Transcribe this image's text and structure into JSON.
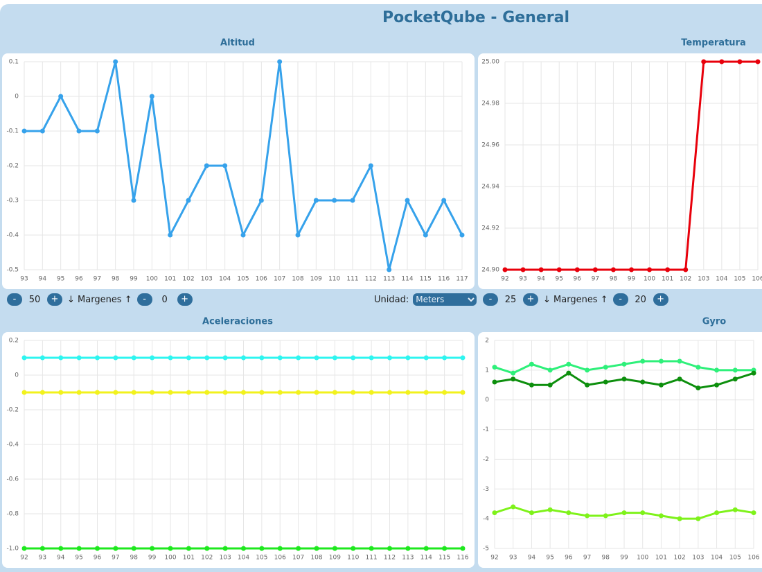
{
  "title": "PocketQube - General",
  "chart_data": [
    {
      "type": "line",
      "title": "Altitud",
      "categories": [
        93,
        94,
        95,
        96,
        97,
        98,
        99,
        100,
        101,
        102,
        103,
        104,
        105,
        106,
        107,
        108,
        109,
        110,
        111,
        112,
        113,
        114,
        115,
        116,
        117
      ],
      "series": [
        {
          "color": "#36a2eb",
          "values": [
            -0.1,
            -0.1,
            0,
            -0.1,
            -0.1,
            0.1,
            -0.3,
            0,
            -0.4,
            -0.3,
            -0.2,
            -0.2,
            -0.4,
            -0.3,
            0.1,
            -0.4,
            -0.3,
            -0.3,
            -0.3,
            -0.2,
            -0.5,
            -0.3,
            -0.4,
            -0.3,
            -0.4
          ]
        }
      ],
      "ylim": [
        -0.5,
        0.1
      ],
      "yticks": [
        0.1,
        0,
        -0.1,
        -0.2,
        -0.3,
        -0.4,
        -0.5
      ],
      "grid": true
    },
    {
      "type": "line",
      "title": "Temperatura",
      "categories": [
        92,
        93,
        94,
        95,
        96,
        97,
        98,
        99,
        100,
        101,
        102,
        103,
        104,
        105,
        106
      ],
      "series": [
        {
          "color": "#e8000b",
          "values": [
            24.9,
            24.9,
            24.9,
            24.9,
            24.9,
            24.9,
            24.9,
            24.9,
            24.9,
            24.9,
            24.9,
            25.0,
            25.0,
            25.0,
            25.0
          ]
        }
      ],
      "ylim": [
        24.9,
        25.0
      ],
      "yticks": [
        {
          "value": 25.0,
          "label": "25.00"
        },
        {
          "value": 24.98,
          "label": "24.98"
        },
        {
          "value": 24.96,
          "label": "24.96"
        },
        {
          "value": 24.94,
          "label": "24.94"
        },
        {
          "value": 24.92,
          "label": "24.92"
        },
        {
          "value": 24.9,
          "label": "24.90"
        }
      ],
      "grid": true
    },
    {
      "type": "line",
      "title": "Aceleraciones",
      "categories": [
        92,
        93,
        94,
        95,
        96,
        97,
        98,
        99,
        100,
        101,
        102,
        103,
        104,
        105,
        106,
        107,
        108,
        109,
        110,
        111,
        112,
        113,
        114,
        115,
        116
      ],
      "series": [
        {
          "color": "#2ef5f0",
          "values": [
            0.1,
            0.1,
            0.1,
            0.1,
            0.1,
            0.1,
            0.1,
            0.1,
            0.1,
            0.1,
            0.1,
            0.1,
            0.1,
            0.1,
            0.1,
            0.1,
            0.1,
            0.1,
            0.1,
            0.1,
            0.1,
            0.1,
            0.1,
            0.1,
            0.1
          ]
        },
        {
          "color": "#f2f21c",
          "values": [
            -0.1,
            -0.1,
            -0.1,
            -0.1,
            -0.1,
            -0.1,
            -0.1,
            -0.1,
            -0.1,
            -0.1,
            -0.1,
            -0.1,
            -0.1,
            -0.1,
            -0.1,
            -0.1,
            -0.1,
            -0.1,
            -0.1,
            -0.1,
            -0.1,
            -0.1,
            -0.1,
            -0.1,
            -0.1
          ]
        },
        {
          "color": "#1ee81e",
          "values": [
            -1.0,
            -1.0,
            -1.0,
            -1.0,
            -1.0,
            -1.0,
            -1.0,
            -1.0,
            -1.0,
            -1.0,
            -1.0,
            -1.0,
            -1.0,
            -1.0,
            -1.0,
            -1.0,
            -1.0,
            -1.0,
            -1.0,
            -1.0,
            -1.0,
            -1.0,
            -1.0,
            -1.0,
            -1.0
          ]
        }
      ],
      "ylim": [
        -1.0,
        0.2
      ],
      "yticks": [
        0.2,
        0,
        -0.2,
        -0.4,
        -0.6,
        -0.8,
        {
          "value": -1.0,
          "label": "-1.0"
        }
      ],
      "grid": true
    },
    {
      "type": "line",
      "title": "Gyro",
      "categories": [
        92,
        93,
        94,
        95,
        96,
        97,
        98,
        99,
        100,
        101,
        102,
        103,
        104,
        105,
        106
      ],
      "series": [
        {
          "color": "#2ef07a",
          "values": [
            1.1,
            0.9,
            1.2,
            1.0,
            1.2,
            1.0,
            1.1,
            1.2,
            1.3,
            1.3,
            1.3,
            1.1,
            1.0,
            1.0,
            1.0
          ]
        },
        {
          "color": "#0d8f0d",
          "values": [
            0.6,
            0.7,
            0.5,
            0.5,
            0.9,
            0.5,
            0.6,
            0.7,
            0.6,
            0.5,
            0.7,
            0.4,
            0.5,
            0.7,
            0.9
          ]
        },
        {
          "color": "#7ef21a",
          "values": [
            -3.8,
            -3.6,
            -3.8,
            -3.7,
            -3.8,
            -3.9,
            -3.9,
            -3.8,
            -3.8,
            -3.9,
            -4.0,
            -4.0,
            -3.8,
            -3.7,
            -3.8
          ]
        }
      ],
      "ylim": [
        -5,
        2
      ],
      "yticks": [
        2,
        1,
        0,
        -1,
        -2,
        -3,
        -4,
        -5
      ],
      "grid": true
    }
  ],
  "controls": {
    "left": [
      "-",
      50,
      "+",
      "↓ Margenes ↑",
      "-",
      0,
      "+"
    ],
    "unit": {
      "label": "Unidad:",
      "selected": "Meters"
    },
    "right": [
      "-",
      25,
      "+",
      "↓ Margenes ↑",
      "-",
      20,
      "+"
    ]
  }
}
